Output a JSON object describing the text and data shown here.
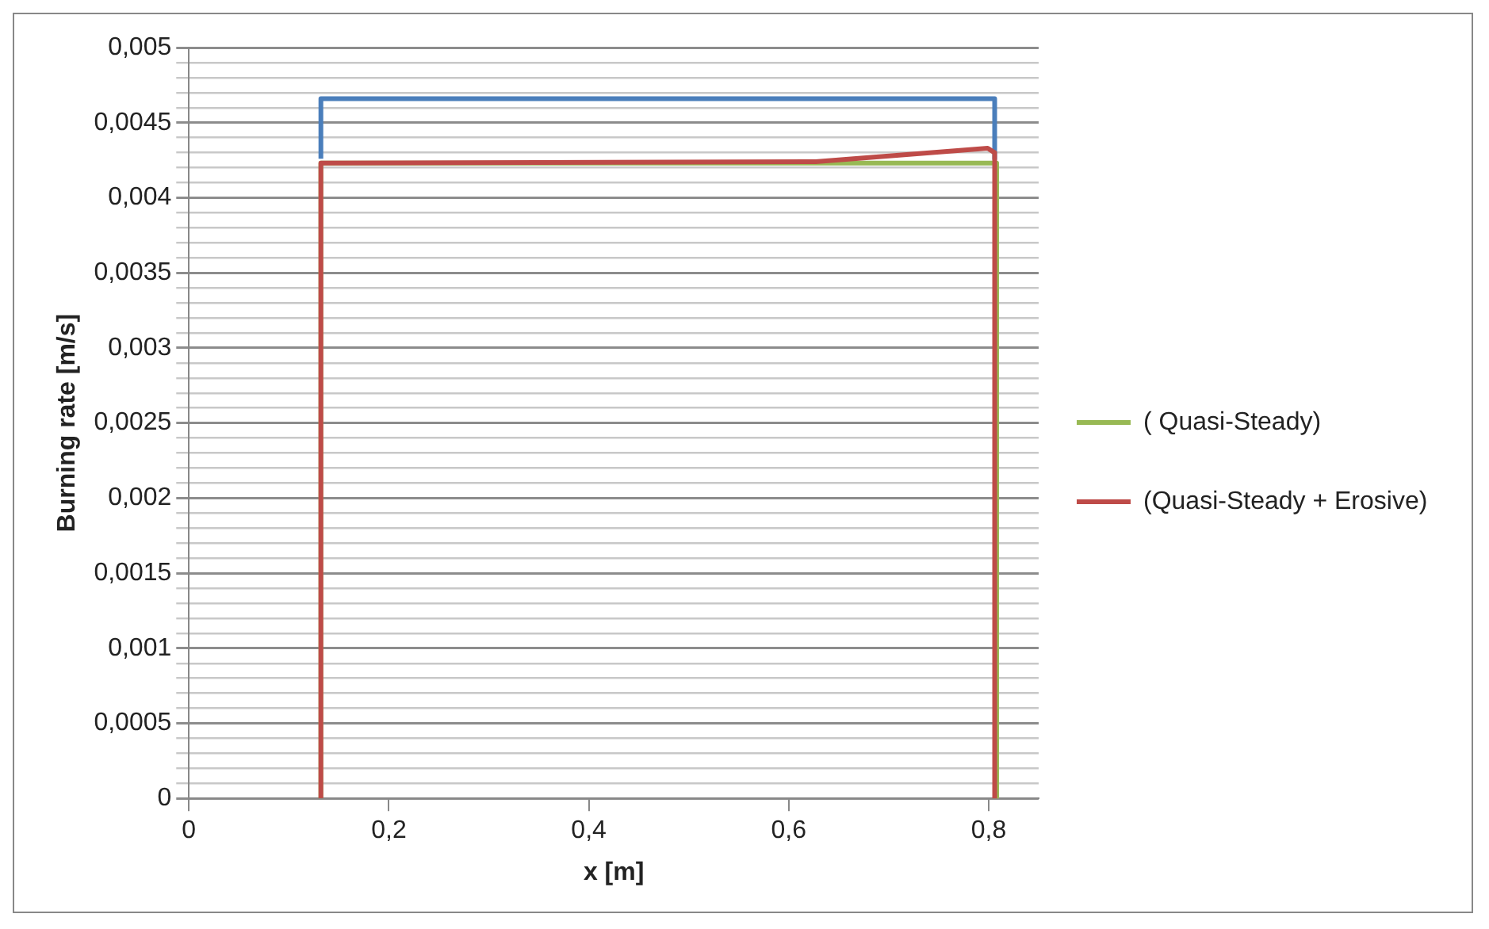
{
  "chart_data": {
    "type": "line",
    "xlabel": "x [m]",
    "ylabel": "Burning rate [m/s]",
    "xlim": [
      0,
      0.85
    ],
    "xticks": [
      {
        "value": 0,
        "label": "0"
      },
      {
        "value": 0.2,
        "label": "0,2"
      },
      {
        "value": 0.4,
        "label": "0,4"
      },
      {
        "value": 0.6,
        "label": "0,6"
      },
      {
        "value": 0.8,
        "label": "0,8"
      }
    ],
    "ylim": [
      0,
      0.005
    ],
    "yticks": [
      {
        "value": 0,
        "label": "0"
      },
      {
        "value": 0.0001,
        "label": null
      },
      {
        "value": 0.0002,
        "label": null
      },
      {
        "value": 0.0003,
        "label": null
      },
      {
        "value": 0.0004,
        "label": null
      },
      {
        "value": 0.0005,
        "label": "0,0005"
      },
      {
        "value": 0.0006,
        "label": null
      },
      {
        "value": 0.0007,
        "label": null
      },
      {
        "value": 0.0008,
        "label": null
      },
      {
        "value": 0.0009,
        "label": null
      },
      {
        "value": 0.001,
        "label": "0,001"
      },
      {
        "value": 0.0011,
        "label": null
      },
      {
        "value": 0.0012,
        "label": null
      },
      {
        "value": 0.0013,
        "label": null
      },
      {
        "value": 0.0014,
        "label": null
      },
      {
        "value": 0.0015,
        "label": "0,0015"
      },
      {
        "value": 0.0016,
        "label": null
      },
      {
        "value": 0.0017,
        "label": null
      },
      {
        "value": 0.0018,
        "label": null
      },
      {
        "value": 0.0019,
        "label": null
      },
      {
        "value": 0.002,
        "label": "0,002"
      },
      {
        "value": 0.0021,
        "label": null
      },
      {
        "value": 0.0022,
        "label": null
      },
      {
        "value": 0.0023,
        "label": null
      },
      {
        "value": 0.0024,
        "label": null
      },
      {
        "value": 0.0025,
        "label": "0,0025"
      },
      {
        "value": 0.0026,
        "label": null
      },
      {
        "value": 0.0027,
        "label": null
      },
      {
        "value": 0.0028,
        "label": null
      },
      {
        "value": 0.0029,
        "label": null
      },
      {
        "value": 0.003,
        "label": "0,003"
      },
      {
        "value": 0.0031,
        "label": null
      },
      {
        "value": 0.0032,
        "label": null
      },
      {
        "value": 0.0033,
        "label": null
      },
      {
        "value": 0.0034,
        "label": null
      },
      {
        "value": 0.0035,
        "label": "0,0035"
      },
      {
        "value": 0.0036,
        "label": null
      },
      {
        "value": 0.0037,
        "label": null
      },
      {
        "value": 0.0038,
        "label": null
      },
      {
        "value": 0.0039,
        "label": null
      },
      {
        "value": 0.004,
        "label": "0,004"
      },
      {
        "value": 0.0041,
        "label": null
      },
      {
        "value": 0.0042,
        "label": null
      },
      {
        "value": 0.0043,
        "label": null
      },
      {
        "value": 0.0044,
        "label": null
      },
      {
        "value": 0.0045,
        "label": "0,0045"
      },
      {
        "value": 0.0046,
        "label": null
      },
      {
        "value": 0.0047,
        "label": null
      },
      {
        "value": 0.0048,
        "label": null
      },
      {
        "value": 0.0049,
        "label": null
      },
      {
        "value": 0.005,
        "label": "0,005"
      }
    ],
    "grid": "y",
    "legend": "right",
    "marker": "none",
    "line_style": "solid",
    "series": [
      {
        "color": "#4a7ebb",
        "x": [
          0.132,
          0.132,
          0.806,
          0.806
        ],
        "values": [
          0.00426,
          0.00466,
          0.00466,
          0.00426
        ]
      },
      {
        "name": "( Quasi-Steady)",
        "color": "#98b954",
        "x": [
          0.132,
          0.132,
          0.808,
          0.808
        ],
        "values": [
          0,
          0.00423,
          0.00423,
          0
        ]
      },
      {
        "name": "(Quasi-Steady + Erosive)",
        "color": "#be4b48",
        "x": [
          0.132,
          0.132,
          0.627,
          0.799,
          0.806,
          0.806
        ],
        "values": [
          0,
          0.00423,
          0.00424,
          0.00433,
          0.0043,
          0
        ]
      }
    ]
  }
}
